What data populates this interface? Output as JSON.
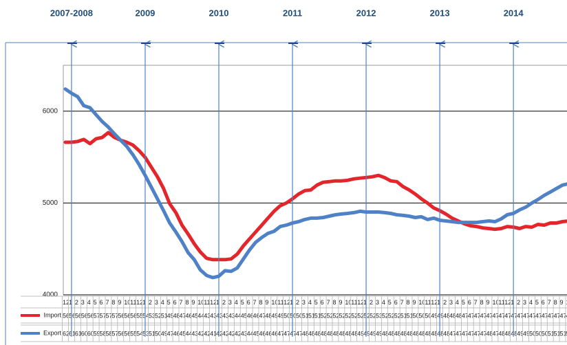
{
  "chart_data": {
    "type": "line",
    "year_labels": [
      "2007-2008",
      "2009",
      "2010",
      "2011",
      "2012",
      "2013",
      "2014"
    ],
    "categories": [
      "12",
      "1",
      "2",
      "3",
      "4",
      "5",
      "6",
      "7",
      "8",
      "9",
      "10",
      "11",
      "12",
      "1",
      "2",
      "3",
      "4",
      "5",
      "6",
      "7",
      "8",
      "9",
      "10",
      "11",
      "12",
      "1",
      "2",
      "3",
      "4",
      "5",
      "6",
      "7",
      "8",
      "9",
      "10",
      "11",
      "12",
      "1",
      "2",
      "3",
      "4",
      "5",
      "6",
      "7",
      "8",
      "9",
      "10",
      "11",
      "12",
      "1",
      "2",
      "3",
      "4",
      "5",
      "6",
      "7",
      "8",
      "9",
      "10",
      "11",
      "12",
      "1",
      "2",
      "3",
      "4",
      "5",
      "6",
      "7",
      "8",
      "9",
      "10",
      "11",
      "12",
      "1",
      "2",
      "3",
      "4",
      "5",
      "6",
      "7",
      "8",
      "9",
      "10"
    ],
    "series": [
      {
        "name": "Import",
        "color": "#e3262b",
        "values": [
          5662,
          5662,
          5670,
          5692,
          5647,
          5700,
          5714,
          5767,
          5714,
          5684,
          5662,
          5632,
          5571,
          5496,
          5391,
          5286,
          5158,
          4992,
          4895,
          4759,
          4662,
          4556,
          4466,
          4398,
          4383,
          4383,
          4383,
          4391,
          4444,
          4534,
          4609,
          4684,
          4759,
          4835,
          4910,
          4970,
          5000,
          5045,
          5098,
          5135,
          5143,
          5195,
          5226,
          5233,
          5241,
          5241,
          5248,
          5263,
          5271,
          5278,
          5286,
          5301,
          5278,
          5241,
          5233,
          5180,
          5143,
          5098,
          5045,
          5000,
          4947,
          4917,
          4880,
          4835,
          4805,
          4774,
          4752,
          4744,
          4729,
          4722,
          4714,
          4722,
          4744,
          4737,
          4722,
          4744,
          4737,
          4767,
          4759,
          4782,
          4782,
          4797,
          4805
        ]
      },
      {
        "name": "Export",
        "color": "#4f81c7",
        "values": [
          6241,
          6195,
          6158,
          6060,
          6038,
          5962,
          5887,
          5827,
          5752,
          5684,
          5617,
          5526,
          5421,
          5301,
          5173,
          5045,
          4917,
          4782,
          4684,
          4579,
          4459,
          4383,
          4271,
          4211,
          4188,
          4203,
          4263,
          4256,
          4293,
          4391,
          4489,
          4571,
          4624,
          4669,
          4692,
          4744,
          4759,
          4782,
          4797,
          4820,
          4835,
          4835,
          4842,
          4857,
          4872,
          4880,
          4887,
          4895,
          4910,
          4902,
          4902,
          4902,
          4895,
          4887,
          4872,
          4865,
          4857,
          4842,
          4850,
          4820,
          4835,
          4812,
          4805,
          4797,
          4789,
          4789,
          4789,
          4789,
          4797,
          4805,
          4797,
          4827,
          4872,
          4887,
          4925,
          4955,
          5000,
          5038,
          5083,
          5120,
          5158,
          5195,
          5211
        ]
      }
    ],
    "ylim": [
      4000,
      6500
    ],
    "yticks": [
      4000,
      5000,
      6000
    ],
    "grid": true
  }
}
